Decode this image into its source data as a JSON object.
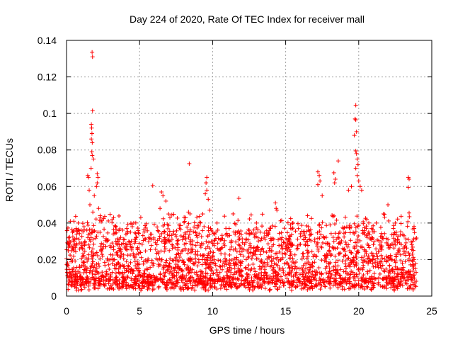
{
  "chart_data": {
    "type": "scatter",
    "title": "Day 224 of 2020, Rate Of TEC Index for receiver mall",
    "xlabel": "GPS time / hours",
    "ylabel": "ROTI / TECUs",
    "xlim": [
      0,
      25
    ],
    "ylim": [
      0,
      0.14
    ],
    "x_ticks": [
      0,
      5,
      10,
      15,
      20,
      25
    ],
    "y_ticks": [
      0,
      0.02,
      0.04,
      0.06,
      0.08,
      0.1,
      0.12,
      0.14
    ],
    "x_tick_labels": [
      "0",
      "5",
      "10",
      "15",
      "20",
      "25"
    ],
    "y_tick_labels": [
      "0",
      "0.02",
      "0.04",
      "0.06",
      "0.08",
      "0.1",
      "0.12",
      "0.14"
    ],
    "grid": true,
    "marker": "+",
    "color": "#ff0000",
    "series": [
      {
        "name": "ROTI",
        "points": [
          [
            1.75,
            0.1335
          ],
          [
            1.78,
            0.131
          ],
          [
            1.78,
            0.1015
          ],
          [
            1.7,
            0.094
          ],
          [
            1.72,
            0.092
          ],
          [
            1.74,
            0.089
          ],
          [
            1.7,
            0.086
          ],
          [
            1.76,
            0.084
          ],
          [
            1.73,
            0.079
          ],
          [
            1.76,
            0.077
          ],
          [
            1.85,
            0.075
          ],
          [
            1.68,
            0.07
          ],
          [
            2.1,
            0.067
          ],
          [
            2.15,
            0.065
          ],
          [
            2.1,
            0.062
          ],
          [
            2.05,
            0.06
          ],
          [
            1.45,
            0.066
          ],
          [
            1.5,
            0.065
          ],
          [
            1.55,
            0.058
          ],
          [
            1.9,
            0.055
          ],
          [
            2.2,
            0.048
          ],
          [
            1.6,
            0.05
          ],
          [
            1.8,
            0.046
          ],
          [
            2.3,
            0.044
          ],
          [
            5.9,
            0.0605
          ],
          [
            6.5,
            0.057
          ],
          [
            6.6,
            0.055
          ],
          [
            6.8,
            0.052
          ],
          [
            6.4,
            0.048
          ],
          [
            8.4,
            0.0725
          ],
          [
            8.35,
            0.046
          ],
          [
            8.45,
            0.045
          ],
          [
            9.6,
            0.065
          ],
          [
            9.55,
            0.062
          ],
          [
            9.6,
            0.058
          ],
          [
            9.5,
            0.056
          ],
          [
            9.7,
            0.053
          ],
          [
            9.8,
            0.047
          ],
          [
            11.8,
            0.0535
          ],
          [
            11.4,
            0.045
          ],
          [
            14.3,
            0.051
          ],
          [
            14.35,
            0.048
          ],
          [
            14.4,
            0.047
          ],
          [
            17.2,
            0.068
          ],
          [
            17.3,
            0.066
          ],
          [
            17.35,
            0.063
          ],
          [
            17.2,
            0.061
          ],
          [
            17.5,
            0.055
          ],
          [
            18.3,
            0.0675
          ],
          [
            18.4,
            0.064
          ],
          [
            18.35,
            0.062
          ],
          [
            18.6,
            0.074
          ],
          [
            19.8,
            0.1045
          ],
          [
            19.75,
            0.097
          ],
          [
            19.8,
            0.0965
          ],
          [
            19.85,
            0.09
          ],
          [
            19.7,
            0.088
          ],
          [
            19.8,
            0.0795
          ],
          [
            19.85,
            0.078
          ],
          [
            19.9,
            0.075
          ],
          [
            19.95,
            0.072
          ],
          [
            19.8,
            0.07
          ],
          [
            19.9,
            0.066
          ],
          [
            20.0,
            0.063
          ],
          [
            20.1,
            0.06
          ],
          [
            20.2,
            0.058
          ],
          [
            19.5,
            0.06
          ],
          [
            19.3,
            0.058
          ],
          [
            23.4,
            0.065
          ],
          [
            23.45,
            0.064
          ],
          [
            23.4,
            0.0595
          ],
          [
            23.45,
            0.0455
          ],
          [
            0.5,
            0.041
          ],
          [
            0.8,
            0.04
          ],
          [
            1.2,
            0.038
          ],
          [
            3.2,
            0.034
          ],
          [
            4.6,
            0.04
          ],
          [
            4.5,
            0.038
          ],
          [
            10.3,
            0.04
          ],
          [
            12.5,
            0.036
          ],
          [
            13.0,
            0.04
          ],
          [
            15.5,
            0.04
          ],
          [
            16.5,
            0.044
          ],
          [
            21.2,
            0.04
          ],
          [
            22.5,
            0.04
          ],
          [
            21.7,
            0.045
          ],
          [
            22.0,
            0.05
          ]
        ]
      }
    ]
  }
}
